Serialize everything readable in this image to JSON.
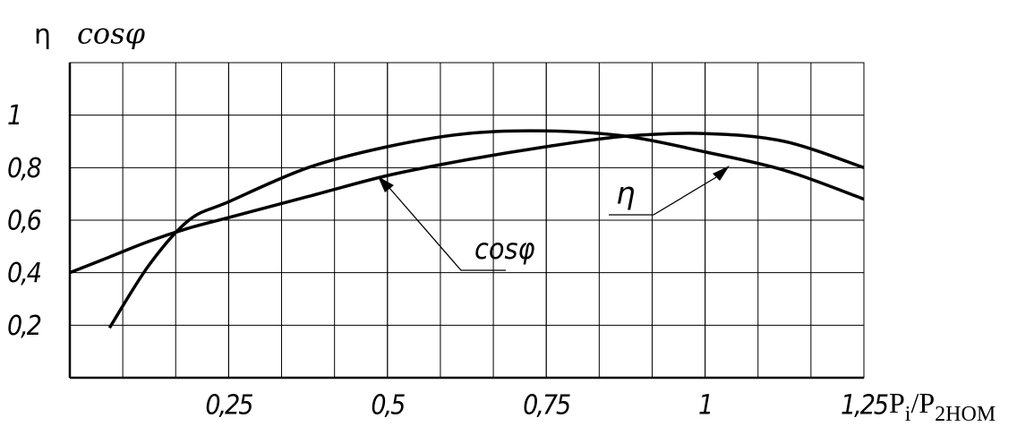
{
  "chart_data": {
    "type": "line",
    "ylabel": [
      "η",
      "cosφ"
    ],
    "xlabel": [
      "P",
      "i",
      "/P",
      "2НОМ"
    ],
    "x": [
      0,
      0.0625,
      0.125,
      0.1875,
      0.25,
      0.375,
      0.5,
      0.625,
      0.75,
      0.875,
      1,
      1.125,
      1.25
    ],
    "series": [
      {
        "name": "η",
        "color": "#000000",
        "values": [
          null,
          0.19,
          0.43,
          0.6,
          0.67,
          0.8,
          0.88,
          0.93,
          0.94,
          0.92,
          0.86,
          0.79,
          0.68
        ]
      },
      {
        "name": "cosφ",
        "color": "#000000",
        "values": [
          0.4,
          0.46,
          0.52,
          0.57,
          0.61,
          0.69,
          0.77,
          0.83,
          0.88,
          0.92,
          0.93,
          0.9,
          0.8
        ]
      }
    ],
    "xlim": [
      0,
      1.25
    ],
    "xticks": [
      {
        "value": 0.25,
        "label": "0,25"
      },
      {
        "value": 0.5,
        "label": "0,5"
      },
      {
        "value": 0.75,
        "label": "0,75"
      },
      1,
      {
        "value": 1.25,
        "label": "1,25"
      }
    ],
    "ylim": [
      0,
      1.2
    ],
    "yticks": [
      {
        "value": 0.2,
        "label": "0,2"
      },
      {
        "value": 0.4,
        "label": "0,4"
      },
      {
        "value": 0.6,
        "label": "0,6"
      },
      {
        "value": 0.8,
        "label": "0,8"
      },
      1
    ],
    "grid": true
  }
}
